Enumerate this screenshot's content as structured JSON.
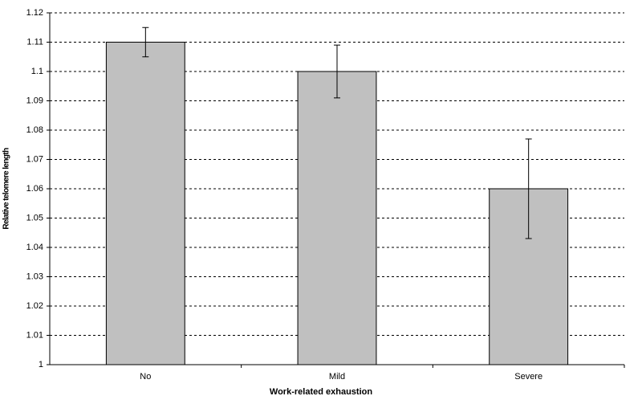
{
  "chart_data": {
    "type": "bar",
    "xlabel": "Work-related exhaustion",
    "ylabel": "Relative telomere length",
    "categories": [
      "No",
      "Mild",
      "Severe"
    ],
    "values": [
      1.11,
      1.1,
      1.06
    ],
    "errors": [
      0.005,
      0.009,
      0.017
    ],
    "color": "#c0c0c0",
    "ylim": [
      1,
      1.12
    ],
    "yticks": [
      1,
      1.01,
      1.02,
      1.03,
      1.04,
      1.05,
      1.06,
      1.07,
      1.08,
      1.09,
      1.1,
      1.11,
      1.12
    ],
    "grid": true
  }
}
